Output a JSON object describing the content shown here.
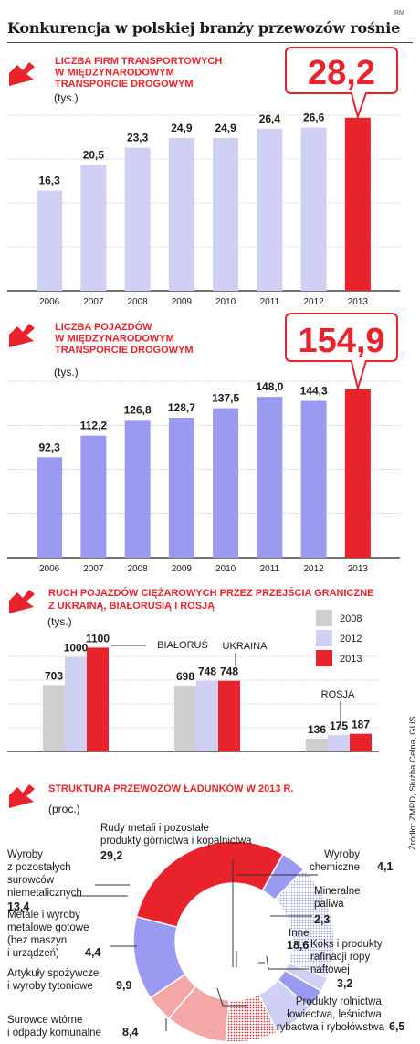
{
  "header": {
    "badge": "RM",
    "title": "Konkurencja w polskiej branży przewozów rośnie"
  },
  "colors": {
    "accent_red": "#e8232b",
    "lavender": "#d0d0f5",
    "periwinkle": "#9a9af0",
    "light_gray": "#cfcfcf",
    "pink": "#f4a7a7",
    "red_dotted": "#e8232b",
    "blue_dotted": "#b9b9f2"
  },
  "source": "Źródło: ZMPD, Służba Celna, GUS",
  "chart_data": [
    {
      "type": "bar",
      "title": [
        "LICZBA FIRM TRANSPORTOWYCH",
        "W MIĘDZYNARODOWYM",
        "TRANSPORCIE DROGOWYM"
      ],
      "unit": "(tys.)",
      "categories": [
        "2006",
        "2007",
        "2008",
        "2009",
        "2010",
        "2011",
        "2012",
        "2013"
      ],
      "values": [
        16.3,
        20.5,
        23.3,
        24.9,
        24.9,
        26.4,
        26.6,
        28.2
      ],
      "value_labels": [
        "16,3",
        "20,5",
        "23,3",
        "24,9",
        "24,9",
        "26,4",
        "26,6",
        "28,2"
      ],
      "ylim": [
        0,
        31
      ],
      "grid": true,
      "highlight_index": 7
    },
    {
      "type": "bar",
      "title": [
        "LICZBA POJAZDÓW",
        "W MIĘDZYNARODOWYM",
        "TRANSPORCIE DROGOWYM"
      ],
      "unit": "(tys.)",
      "categories": [
        "2006",
        "2007",
        "2008",
        "2009",
        "2010",
        "2011",
        "2012",
        "2013"
      ],
      "values": [
        92.3,
        112.2,
        126.8,
        128.7,
        137.5,
        148.0,
        144.3,
        154.9
      ],
      "value_labels": [
        "92,3",
        "112,2",
        "126,8",
        "128,7",
        "137,5",
        "148,0",
        "144,3",
        "154,9"
      ],
      "ylim": [
        0,
        175
      ],
      "grid": true,
      "highlight_index": 7
    },
    {
      "type": "bar",
      "title": [
        "RUCH POJAZDÓW CIĘŻAROWYCH PRZEZ PRZEJŚCIA GRANICZNE",
        "Z UKRAINĄ, BIAŁORUSIĄ I ROSJĄ"
      ],
      "unit": "(tys.)",
      "categories": [
        "BIAŁORUŚ",
        "UKRAINA",
        "ROSJA"
      ],
      "series": [
        {
          "name": "2008",
          "values": [
            703,
            698,
            136
          ],
          "labels": [
            "703",
            "698",
            "136"
          ]
        },
        {
          "name": "2012",
          "values": [
            1000,
            748,
            175
          ],
          "labels": [
            "1000",
            "748",
            "175"
          ]
        },
        {
          "name": "2013",
          "values": [
            1100,
            748,
            187
          ],
          "labels": [
            "1100",
            "748",
            "187"
          ]
        }
      ],
      "ylim": [
        0,
        1220
      ],
      "grid": true,
      "legend": "top-right"
    },
    {
      "type": "pie",
      "title": [
        "STRUKTURA PRZEWOZÓW ŁADUNKÓW W 2013 R."
      ],
      "unit": "(proc.)",
      "slices": [
        {
          "label": [
            "Rudy metali i pozostałe",
            "produkty górnictwa i kopalnictwa"
          ],
          "value": 29.2,
          "value_label": "29,2"
        },
        {
          "label": [
            "Wyroby",
            "chemiczne"
          ],
          "value": 4.1,
          "value_label": "4,1"
        },
        {
          "label": [
            "Inne"
          ],
          "value": 18.6,
          "value_label": "18,6"
        },
        {
          "label": [
            "Mineralne",
            "paliwa"
          ],
          "value": 2.3,
          "value_label": "2,3"
        },
        {
          "label": [
            "Koks i produkty",
            "rafinacji ropy",
            "naftowej"
          ],
          "value": 3.2,
          "value_label": "3,2"
        },
        {
          "label": [
            "Produkty rolnictwa,",
            "łowiectwa, leśnictwa,",
            "rybactwa i rybołówstwa"
          ],
          "value": 6.5,
          "value_label": "6,5"
        },
        {
          "label": [
            "Surowce wtórne",
            "i odpady komunalne"
          ],
          "value": 8.4,
          "value_label": "8,4"
        },
        {
          "label": [
            "Artykuły spożywcze",
            "i wyroby tytoniowe"
          ],
          "value": 9.9,
          "value_label": "9,9"
        },
        {
          "label": [
            "Metale i wyroby",
            "metalowe gotowe",
            "(bez maszyn",
            "i urządzeń)"
          ],
          "value": 4.4,
          "value_label": "4,4"
        },
        {
          "label": [
            "Wyroby",
            "z pozostałych",
            "surowców",
            "niemetalicznych"
          ],
          "value": 13.4,
          "value_label": "13,4"
        }
      ]
    }
  ]
}
